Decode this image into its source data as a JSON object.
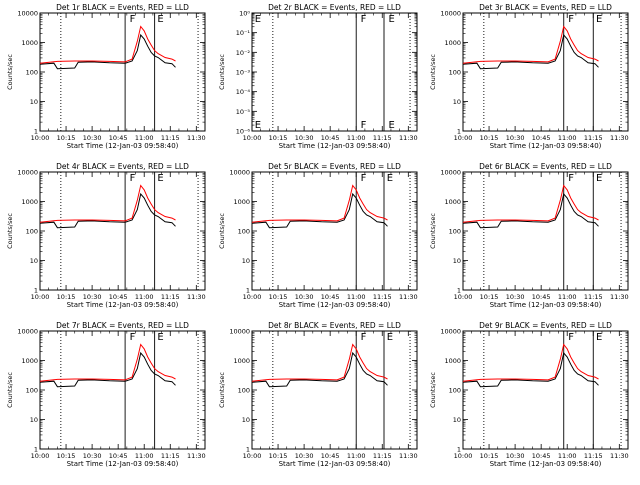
{
  "colors": {
    "events": "#000000",
    "lld": "#ff0000",
    "background": "#ffffff"
  },
  "common": {
    "xlabel": "Start Time (12-Jan-03 09:58:40)",
    "ylabel": "Counts/sec",
    "x_ticks": [
      "10:00",
      "10:15",
      "10:30",
      "10:45",
      "11:00",
      "11:15",
      "11:30"
    ]
  },
  "chart_data": [
    {
      "type": "line",
      "title": "Det 1r BLACK = Events, RED = LLD",
      "xlim": [
        "10:00",
        "11:35"
      ],
      "ylog": true,
      "y_ticks": [
        "1",
        "10",
        "100",
        "1000",
        "10000"
      ],
      "ylim": [
        1,
        15000
      ],
      "dotted_lines": [
        "10:12",
        "11:31"
      ],
      "solid_lines": [
        "10:49",
        "11:06"
      ],
      "markers": [
        {
          "text": "F",
          "x": "10:51"
        },
        {
          "text": "E",
          "x": "11:07"
        }
      ],
      "series": [
        {
          "color": "#000000",
          "x": [
            "10:00",
            "10:08",
            "10:10",
            "10:20",
            "10:22",
            "10:30",
            "10:40",
            "10:49",
            "10:53",
            "10:56",
            "10:58",
            "11:00",
            "11:02",
            "11:04",
            "11:06",
            "11:08",
            "11:12",
            "11:16",
            "11:18"
          ],
          "values": [
            230,
            250,
            160,
            170,
            270,
            280,
            260,
            250,
            300,
            700,
            2500,
            1800,
            1000,
            600,
            450,
            400,
            260,
            240,
            180
          ]
        },
        {
          "color": "#ff0000",
          "x": [
            "10:00",
            "10:10",
            "10:20",
            "10:30",
            "10:40",
            "10:49",
            "10:53",
            "10:56",
            "10:58",
            "11:00",
            "11:02",
            "11:04",
            "11:06",
            "11:08",
            "11:12",
            "11:16",
            "11:18"
          ],
          "values": [
            250,
            290,
            300,
            300,
            290,
            280,
            350,
            1500,
            5000,
            3500,
            1800,
            1100,
            700,
            550,
            400,
            350,
            300
          ]
        }
      ]
    },
    {
      "type": "line",
      "title": "Det 2r BLACK = Events, RED = LLD",
      "xlim": [
        "10:00",
        "11:35"
      ],
      "ylog": true,
      "y_ticks": [
        "10⁻⁶",
        "10⁻⁵",
        "10⁻⁴",
        "10⁻³",
        "10⁻²",
        "10⁻¹",
        "10⁰"
      ],
      "ylim": [
        1e-06,
        1
      ],
      "dotted_lines": [
        "10:12",
        "11:31"
      ],
      "solid_lines": [
        "11:00",
        "11:16"
      ],
      "markers": [
        {
          "text": "E",
          "x": "10:01"
        },
        {
          "text": "F",
          "x": "11:02"
        },
        {
          "text": "E",
          "x": "11:18"
        }
      ],
      "series": []
    },
    {
      "type": "line",
      "title": "Det 3r BLACK = Events, RED = LLD",
      "xlim": [
        "10:00",
        "11:35"
      ],
      "ylog": true,
      "y_ticks": [
        "1",
        "10",
        "100",
        "1000",
        "10000"
      ],
      "ylim": [
        1,
        15000
      ],
      "dotted_lines": [
        "10:12",
        "11:31"
      ],
      "solid_lines": [
        "10:58",
        "11:15"
      ],
      "markers": [
        {
          "text": "F",
          "x": "11:00"
        },
        {
          "text": "E",
          "x": "11:16"
        }
      ],
      "series": [
        {
          "color": "#000000",
          "x": [
            "10:00",
            "10:08",
            "10:10",
            "10:20",
            "10:22",
            "10:30",
            "10:40",
            "10:49",
            "10:53",
            "10:56",
            "10:58",
            "11:00",
            "11:02",
            "11:04",
            "11:06",
            "11:08",
            "11:12",
            "11:16",
            "11:18"
          ],
          "values": [
            230,
            250,
            160,
            170,
            270,
            280,
            260,
            250,
            300,
            700,
            2500,
            1800,
            1000,
            600,
            450,
            400,
            260,
            240,
            180
          ]
        },
        {
          "color": "#ff0000",
          "x": [
            "10:00",
            "10:10",
            "10:20",
            "10:30",
            "10:40",
            "10:49",
            "10:53",
            "10:56",
            "10:58",
            "11:00",
            "11:02",
            "11:04",
            "11:06",
            "11:08",
            "11:12",
            "11:16",
            "11:18"
          ],
          "values": [
            250,
            290,
            300,
            300,
            290,
            280,
            350,
            1500,
            5000,
            3500,
            1800,
            1100,
            700,
            550,
            400,
            350,
            300
          ]
        }
      ]
    },
    {
      "type": "line",
      "title": "Det 4r BLACK = Events, RED = LLD",
      "xlim": [
        "10:00",
        "11:35"
      ],
      "ylog": true,
      "y_ticks": [
        "1",
        "10",
        "100",
        "1000",
        "10000"
      ],
      "ylim": [
        1,
        15000
      ],
      "dotted_lines": [
        "10:12",
        "11:31"
      ],
      "solid_lines": [
        "10:49",
        "11:06"
      ],
      "markers": [
        {
          "text": "F",
          "x": "10:51"
        },
        {
          "text": "E",
          "x": "11:07"
        }
      ],
      "series": [
        {
          "color": "#000000",
          "x": [
            "10:00",
            "10:08",
            "10:10",
            "10:20",
            "10:22",
            "10:30",
            "10:40",
            "10:49",
            "10:53",
            "10:56",
            "10:58",
            "11:00",
            "11:02",
            "11:04",
            "11:06",
            "11:08",
            "11:12",
            "11:16",
            "11:18"
          ],
          "values": [
            230,
            250,
            160,
            170,
            270,
            280,
            260,
            250,
            300,
            700,
            2500,
            1800,
            1000,
            600,
            450,
            400,
            260,
            240,
            180
          ]
        },
        {
          "color": "#ff0000",
          "x": [
            "10:00",
            "10:10",
            "10:20",
            "10:30",
            "10:40",
            "10:49",
            "10:53",
            "10:56",
            "10:58",
            "11:00",
            "11:02",
            "11:04",
            "11:06",
            "11:08",
            "11:12",
            "11:16",
            "11:18"
          ],
          "values": [
            250,
            290,
            300,
            300,
            290,
            280,
            350,
            1500,
            5000,
            3500,
            1800,
            1100,
            700,
            550,
            400,
            350,
            300
          ]
        }
      ]
    },
    {
      "type": "line",
      "title": "Det 5r BLACK = Events, RED = LLD",
      "xlim": [
        "10:00",
        "11:35"
      ],
      "ylog": true,
      "y_ticks": [
        "1",
        "10",
        "100",
        "1000",
        "10000"
      ],
      "ylim": [
        1,
        15000
      ],
      "dotted_lines": [
        "10:12",
        "11:31"
      ],
      "solid_lines": [
        "11:00",
        "11:16"
      ],
      "markers": [
        {
          "text": "F",
          "x": "11:02"
        },
        {
          "text": "E",
          "x": "11:17"
        }
      ],
      "series": [
        {
          "color": "#000000",
          "x": [
            "10:00",
            "10:08",
            "10:10",
            "10:20",
            "10:22",
            "10:30",
            "10:40",
            "10:49",
            "10:53",
            "10:56",
            "10:58",
            "11:00",
            "11:02",
            "11:04",
            "11:06",
            "11:08",
            "11:12",
            "11:16",
            "11:18"
          ],
          "values": [
            230,
            250,
            160,
            170,
            270,
            280,
            260,
            250,
            300,
            700,
            2500,
            1800,
            1000,
            600,
            450,
            400,
            260,
            240,
            180
          ]
        },
        {
          "color": "#ff0000",
          "x": [
            "10:00",
            "10:10",
            "10:20",
            "10:30",
            "10:40",
            "10:49",
            "10:53",
            "10:56",
            "10:58",
            "11:00",
            "11:02",
            "11:04",
            "11:06",
            "11:08",
            "11:12",
            "11:16",
            "11:18"
          ],
          "values": [
            250,
            290,
            300,
            300,
            290,
            280,
            350,
            1500,
            5000,
            3500,
            1800,
            1100,
            700,
            550,
            400,
            350,
            300
          ]
        }
      ]
    },
    {
      "type": "line",
      "title": "Det 6r BLACK = Events, RED = LLD",
      "xlim": [
        "10:00",
        "11:35"
      ],
      "ylog": true,
      "y_ticks": [
        "1",
        "10",
        "100",
        "1000",
        "10000"
      ],
      "ylim": [
        1,
        15000
      ],
      "dotted_lines": [
        "10:12",
        "11:31"
      ],
      "solid_lines": [
        "10:58",
        "11:15"
      ],
      "markers": [
        {
          "text": "F",
          "x": "11:00"
        },
        {
          "text": "E",
          "x": "11:16"
        }
      ],
      "series": [
        {
          "color": "#000000",
          "x": [
            "10:00",
            "10:08",
            "10:10",
            "10:20",
            "10:22",
            "10:30",
            "10:40",
            "10:49",
            "10:53",
            "10:56",
            "10:58",
            "11:00",
            "11:02",
            "11:04",
            "11:06",
            "11:08",
            "11:12",
            "11:16",
            "11:18"
          ],
          "values": [
            230,
            250,
            160,
            170,
            270,
            280,
            260,
            250,
            300,
            700,
            2500,
            1800,
            1000,
            600,
            450,
            400,
            260,
            240,
            180
          ]
        },
        {
          "color": "#ff0000",
          "x": [
            "10:00",
            "10:10",
            "10:20",
            "10:30",
            "10:40",
            "10:49",
            "10:53",
            "10:56",
            "10:58",
            "11:00",
            "11:02",
            "11:04",
            "11:06",
            "11:08",
            "11:12",
            "11:16",
            "11:18"
          ],
          "values": [
            250,
            290,
            300,
            300,
            290,
            280,
            350,
            1500,
            5000,
            3500,
            1800,
            1100,
            700,
            550,
            400,
            350,
            300
          ]
        }
      ]
    },
    {
      "type": "line",
      "title": "Det 7r BLACK = Events, RED = LLD",
      "xlim": [
        "10:00",
        "11:35"
      ],
      "ylog": true,
      "y_ticks": [
        "1",
        "10",
        "100",
        "1000",
        "10000"
      ],
      "ylim": [
        1,
        15000
      ],
      "dotted_lines": [
        "10:12",
        "11:31"
      ],
      "solid_lines": [
        "10:49",
        "11:06"
      ],
      "markers": [
        {
          "text": "F",
          "x": "10:51"
        },
        {
          "text": "E",
          "x": "11:07"
        }
      ],
      "series": [
        {
          "color": "#000000",
          "x": [
            "10:00",
            "10:08",
            "10:10",
            "10:20",
            "10:22",
            "10:30",
            "10:40",
            "10:49",
            "10:53",
            "10:56",
            "10:58",
            "11:00",
            "11:02",
            "11:04",
            "11:06",
            "11:08",
            "11:12",
            "11:16",
            "11:18"
          ],
          "values": [
            230,
            250,
            160,
            170,
            270,
            280,
            260,
            250,
            300,
            700,
            2500,
            1800,
            1000,
            600,
            450,
            400,
            260,
            240,
            180
          ]
        },
        {
          "color": "#ff0000",
          "x": [
            "10:00",
            "10:10",
            "10:20",
            "10:30",
            "10:40",
            "10:49",
            "10:53",
            "10:56",
            "10:58",
            "11:00",
            "11:02",
            "11:04",
            "11:06",
            "11:08",
            "11:12",
            "11:16",
            "11:18"
          ],
          "values": [
            250,
            290,
            300,
            300,
            290,
            280,
            350,
            1500,
            5000,
            3500,
            1800,
            1100,
            700,
            550,
            400,
            350,
            300
          ]
        }
      ]
    },
    {
      "type": "line",
      "title": "Det 8r BLACK = Events, RED = LLD",
      "xlim": [
        "10:00",
        "11:35"
      ],
      "ylog": true,
      "y_ticks": [
        "1",
        "10",
        "100",
        "1000",
        "10000"
      ],
      "ylim": [
        1,
        15000
      ],
      "dotted_lines": [
        "10:12",
        "11:31"
      ],
      "solid_lines": [
        "11:00",
        "11:16"
      ],
      "markers": [
        {
          "text": "F",
          "x": "11:02"
        },
        {
          "text": "E",
          "x": "11:17"
        }
      ],
      "series": [
        {
          "color": "#000000",
          "x": [
            "10:00",
            "10:08",
            "10:10",
            "10:20",
            "10:22",
            "10:30",
            "10:40",
            "10:49",
            "10:53",
            "10:56",
            "10:58",
            "11:00",
            "11:02",
            "11:04",
            "11:06",
            "11:08",
            "11:12",
            "11:16",
            "11:18"
          ],
          "values": [
            230,
            250,
            160,
            170,
            270,
            280,
            260,
            250,
            300,
            700,
            2500,
            1800,
            1000,
            600,
            450,
            400,
            260,
            240,
            180
          ]
        },
        {
          "color": "#ff0000",
          "x": [
            "10:00",
            "10:10",
            "10:20",
            "10:30",
            "10:40",
            "10:49",
            "10:53",
            "10:56",
            "10:58",
            "11:00",
            "11:02",
            "11:04",
            "11:06",
            "11:08",
            "11:12",
            "11:16",
            "11:18"
          ],
          "values": [
            250,
            290,
            300,
            300,
            290,
            280,
            350,
            1500,
            5000,
            3500,
            1800,
            1100,
            700,
            550,
            400,
            350,
            300
          ]
        }
      ]
    },
    {
      "type": "line",
      "title": "Det 9r BLACK = Events, RED = LLD",
      "xlim": [
        "10:00",
        "11:35"
      ],
      "ylog": true,
      "y_ticks": [
        "1",
        "10",
        "100",
        "1000",
        "10000"
      ],
      "ylim": [
        1,
        15000
      ],
      "dotted_lines": [
        "10:12",
        "11:31"
      ],
      "solid_lines": [
        "10:58",
        "11:15"
      ],
      "markers": [
        {
          "text": "F",
          "x": "11:00"
        },
        {
          "text": "E",
          "x": "11:16"
        }
      ],
      "series": [
        {
          "color": "#000000",
          "x": [
            "10:00",
            "10:08",
            "10:10",
            "10:20",
            "10:22",
            "10:30",
            "10:40",
            "10:49",
            "10:53",
            "10:56",
            "10:58",
            "11:00",
            "11:02",
            "11:04",
            "11:06",
            "11:08",
            "11:12",
            "11:16",
            "11:18"
          ],
          "values": [
            230,
            250,
            160,
            170,
            270,
            280,
            260,
            250,
            300,
            700,
            2500,
            1800,
            1000,
            600,
            450,
            400,
            260,
            240,
            180
          ]
        },
        {
          "color": "#ff0000",
          "x": [
            "10:00",
            "10:10",
            "10:20",
            "10:30",
            "10:40",
            "10:49",
            "10:53",
            "10:56",
            "10:58",
            "11:00",
            "11:02",
            "11:04",
            "11:06",
            "11:08",
            "11:12",
            "11:16",
            "11:18"
          ],
          "values": [
            250,
            290,
            300,
            300,
            290,
            280,
            350,
            1500,
            5000,
            3500,
            1800,
            1100,
            700,
            550,
            400,
            350,
            300
          ]
        }
      ]
    }
  ]
}
